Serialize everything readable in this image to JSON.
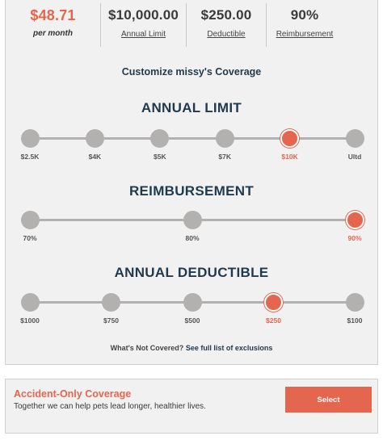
{
  "summary": {
    "price": {
      "value": "$48.71",
      "label": "per month"
    },
    "annual_limit": {
      "value": "$10,000.00",
      "label": "Annual Limit"
    },
    "deductible": {
      "value": "$250.00",
      "label": "Deductible"
    },
    "reimbursement": {
      "value": "90%",
      "label": "Reimbursement"
    }
  },
  "customize_title": "Customize missy's Coverage",
  "sections": {
    "annual_limit": {
      "title": "ANNUAL LIMIT",
      "options": [
        "$2.5K",
        "$4K",
        "$5K",
        "$7K",
        "$10K",
        "Ultd"
      ],
      "selected": "$10K"
    },
    "reimbursement": {
      "title": "REIMBURSEMENT",
      "options": [
        "70%",
        "80%",
        "90%"
      ],
      "selected": "90%"
    },
    "annual_deductible": {
      "title": "ANNUAL DEDUCTIBLE",
      "options": [
        "$1000",
        "$750",
        "$500",
        "$250",
        "$100"
      ],
      "selected": "$250"
    }
  },
  "not_covered": {
    "question": "What's Not Covered?",
    "link": "See full list of exclusions"
  },
  "accident_only": {
    "title": "Accident-Only Coverage",
    "subtitle": "Together we can help pets lead longer, healthier lives.",
    "button": "Select"
  },
  "colors": {
    "accent": "#e4664f",
    "navy": "#1f3a4d",
    "track": "#b3b0b0",
    "card_bg": "#f1f1f1"
  }
}
